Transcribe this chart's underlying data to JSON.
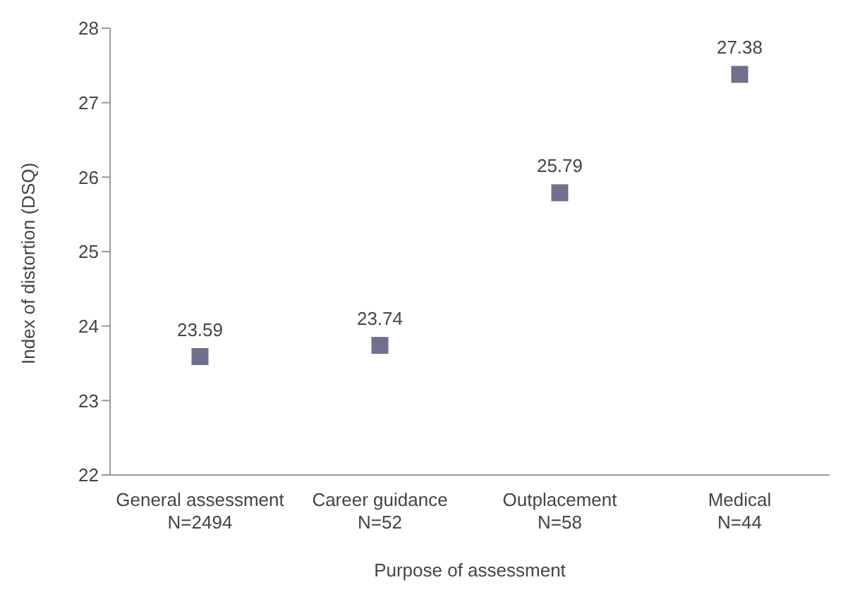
{
  "chart_data": {
    "type": "scatter",
    "xlabel": "Purpose of assessment",
    "ylabel": "Index of distortion (DSQ)",
    "categories": [
      "General assessment\nN=2494",
      "Career guidance\nN=52",
      "Outplacement\nN=58",
      "Medical\nN=44"
    ],
    "values": [
      23.59,
      23.74,
      25.79,
      27.38
    ],
    "color": "#6f6f8e",
    "marker": "square",
    "data_labels": true,
    "ylim": [
      22,
      28
    ],
    "yticks": [
      22,
      23,
      24,
      25,
      26,
      27,
      28
    ],
    "grid": false,
    "legend": false
  }
}
